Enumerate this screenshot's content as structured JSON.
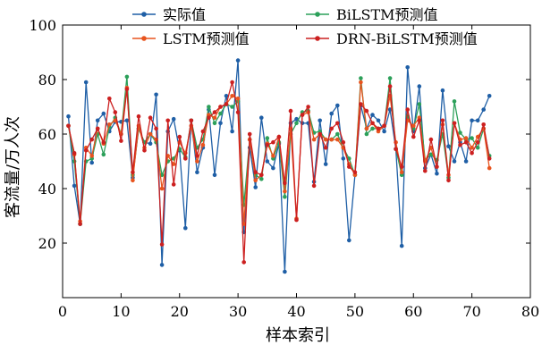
{
  "chart_data": {
    "type": "line",
    "xlabel": "样本索引",
    "ylabel": "客流量/万人次",
    "xlim": [
      0,
      80
    ],
    "ylim": [
      0,
      100
    ],
    "x_ticks": [
      "0",
      "10",
      "20",
      "30",
      "40",
      "50",
      "60",
      "70",
      "80"
    ],
    "y_ticks": [
      "20",
      "40",
      "60",
      "80",
      "100"
    ],
    "grid": false,
    "legend_position": "top",
    "x": [
      1,
      2,
      3,
      4,
      5,
      6,
      7,
      8,
      9,
      10,
      11,
      12,
      13,
      14,
      15,
      16,
      17,
      18,
      19,
      20,
      21,
      22,
      23,
      24,
      25,
      26,
      27,
      28,
      29,
      30,
      31,
      32,
      33,
      34,
      35,
      36,
      37,
      38,
      39,
      40,
      41,
      42,
      43,
      44,
      45,
      46,
      47,
      48,
      49,
      50,
      51,
      52,
      53,
      54,
      55,
      56,
      57,
      58,
      59,
      60,
      61,
      62,
      63,
      64,
      65,
      66,
      67,
      68,
      69,
      70,
      71,
      72,
      73
    ],
    "series": [
      {
        "name": "实际值",
        "color": "#1f5fa6",
        "values": [
          66.5,
          41,
          27,
          79,
          49.5,
          65,
          67.5,
          61,
          64.5,
          64.5,
          65,
          44,
          62,
          57,
          56.5,
          74.5,
          12,
          61,
          65.5,
          54,
          25.5,
          65,
          46,
          55,
          69,
          45,
          64,
          74,
          61,
          87,
          24,
          55,
          40.5,
          66,
          50,
          47.5,
          56.5,
          9.5,
          64,
          65.5,
          64,
          64,
          42.5,
          65,
          49,
          67.5,
          70.5,
          51,
          21,
          45,
          70.5,
          62,
          67,
          65,
          61,
          69,
          54.5,
          19,
          84.5,
          61,
          77.5,
          47.5,
          52.5,
          45.5,
          76,
          55.5,
          50,
          57,
          50,
          65,
          65,
          69,
          74
        ]
      },
      {
        "name": "BiLSTM预测值",
        "color": "#2ca05a",
        "values": [
          63,
          50,
          27,
          50,
          51,
          60,
          52.5,
          62.5,
          66,
          60,
          81,
          45,
          62,
          57,
          60,
          57,
          45,
          50,
          51,
          54.5,
          51.5,
          65,
          55,
          58,
          70,
          64,
          67.5,
          71,
          70,
          72,
          34,
          58,
          45,
          43.5,
          58.5,
          51,
          57,
          37,
          60,
          64,
          68,
          68.5,
          60.5,
          61,
          58,
          58,
          60,
          55,
          51,
          45,
          80.5,
          60,
          62,
          62,
          63,
          80.5,
          54.5,
          45,
          66.5,
          62,
          71,
          50.5,
          52.5,
          50.5,
          60,
          44,
          72,
          60.5,
          58,
          58.5,
          55,
          62,
          52
        ]
      },
      {
        "name": "LSTM预测值",
        "color": "#e8541e",
        "values": [
          63,
          52.5,
          28,
          55,
          52,
          62,
          56.5,
          63.5,
          65,
          60,
          77,
          43,
          63,
          55,
          60,
          58,
          40,
          52,
          49,
          57,
          53,
          63,
          50,
          56,
          67,
          66,
          70,
          71,
          74,
          73,
          27,
          58,
          43,
          45,
          56.5,
          52,
          59,
          39,
          62,
          29,
          67,
          68,
          58,
          60,
          58,
          58,
          58,
          55,
          49,
          45,
          79,
          62,
          64,
          61,
          63,
          74,
          57,
          46,
          65,
          63,
          66,
          50,
          55,
          48,
          63.5,
          45,
          64,
          58,
          58.5,
          55,
          59,
          62,
          47.5
        ]
      },
      {
        "name": "DRN-BiLSTM预测值",
        "color": "#cc2020",
        "values": [
          63,
          53,
          27,
          54,
          58,
          62,
          57,
          73,
          68,
          57.5,
          76.5,
          46,
          66.5,
          54,
          66,
          62,
          19.5,
          65,
          41.5,
          59,
          51,
          65,
          52,
          61,
          66,
          68,
          70,
          71,
          79,
          68,
          13,
          60,
          46,
          45,
          56,
          57,
          59,
          42,
          68.5,
          28.5,
          67,
          70,
          41,
          60,
          55,
          62,
          64,
          57,
          48,
          46,
          71,
          68.5,
          64,
          62,
          63,
          77.5,
          54.5,
          48,
          69,
          59,
          65,
          46.5,
          58,
          48,
          65,
          43,
          64,
          56,
          57,
          53,
          57,
          63.5,
          51
        ]
      }
    ]
  }
}
